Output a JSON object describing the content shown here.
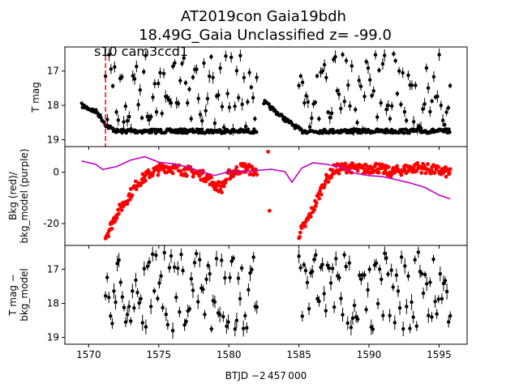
{
  "figure": {
    "title_line1": "AT2019con  Gaia19bdh",
    "title_line2": "18.49G_Gaia Unclassified z= -99.0",
    "annotation": "s10 cam3ccd1",
    "xlabel": "BTJD −2 457 000"
  },
  "colors": {
    "lightcurve": "#000000",
    "background": "#ff0000",
    "bkg_model": "#bf00bf",
    "marker_line": "#ff0000"
  },
  "chart_data": [
    {
      "type": "scatter",
      "panel": "top",
      "ylabel": "T mag",
      "y_inverted": true,
      "xlim": [
        1568.3,
        1597.0
      ],
      "ylim": [
        19.2,
        16.3
      ],
      "xticks": [
        1570,
        1575,
        1580,
        1585,
        1590,
        1595
      ],
      "yticks": [
        17,
        18,
        19
      ],
      "vline_x": 1571.2,
      "segments": [
        [
          1569.5,
          1582.0
        ],
        [
          1582.5,
          1595.8
        ]
      ],
      "baseline": [
        [
          1569.5,
          18.0
        ],
        [
          1570.6,
          18.2
        ],
        [
          1571.3,
          18.6
        ],
        [
          1572.0,
          18.75
        ],
        [
          1582.0,
          18.75
        ],
        [
          1582.5,
          17.9
        ],
        [
          1584.0,
          18.4
        ],
        [
          1585.2,
          18.75
        ],
        [
          1595.8,
          18.75
        ]
      ],
      "scatter_top": 16.5
    },
    {
      "type": "scatter",
      "panel": "middle",
      "ylabel": "Bkg (red)/ bkg_model (purple)",
      "xlim": [
        1568.3,
        1597.0
      ],
      "ylim": [
        -28.5,
        10.0
      ],
      "yticks": [
        -20,
        0
      ],
      "series": [
        {
          "name": "Bkg",
          "points": [
            [
              1571.2,
              -25
            ],
            [
              1571.5,
              -22
            ],
            [
              1572.0,
              -16
            ],
            [
              1572.8,
              -10
            ],
            [
              1573.5,
              -4
            ],
            [
              1574.5,
              0
            ],
            [
              1575.5,
              2
            ],
            [
              1576.5,
              1
            ],
            [
              1577.5,
              0
            ],
            [
              1578.5,
              -2
            ],
            [
              1579.0,
              -5
            ],
            [
              1579.5,
              -6
            ],
            [
              1580.0,
              -1
            ],
            [
              1581.0,
              2
            ],
            [
              1582.0,
              0
            ],
            [
              1582.8,
              8
            ],
            [
              1582.9,
              -15
            ],
            [
              1585.0,
              -24
            ],
            [
              1585.5,
              -20
            ],
            [
              1586.2,
              -12
            ],
            [
              1586.8,
              -4
            ],
            [
              1587.5,
              1
            ],
            [
              1588.5,
              2
            ],
            [
              1589.5,
              1
            ],
            [
              1590.5,
              2
            ],
            [
              1591.5,
              0
            ],
            [
              1592.5,
              1
            ],
            [
              1593.5,
              2
            ],
            [
              1594.5,
              1
            ],
            [
              1595.5,
              0
            ]
          ]
        },
        {
          "name": "bkg_model",
          "points": [
            [
              1569.5,
              4
            ],
            [
              1570.5,
              3
            ],
            [
              1571.0,
              1
            ],
            [
              1572.0,
              2
            ],
            [
              1573.0,
              5
            ],
            [
              1574.0,
              6
            ],
            [
              1575.0,
              4
            ],
            [
              1576.0,
              3
            ],
            [
              1577.0,
              2
            ],
            [
              1578.0,
              0
            ],
            [
              1579.0,
              -1
            ],
            [
              1580.0,
              0
            ],
            [
              1581.0,
              0
            ],
            [
              1582.0,
              1
            ],
            [
              1583.0,
              1
            ],
            [
              1584.0,
              0
            ],
            [
              1584.5,
              -4
            ],
            [
              1585.2,
              2
            ],
            [
              1586.0,
              4
            ],
            [
              1587.0,
              3
            ],
            [
              1588.0,
              2
            ],
            [
              1589.0,
              0
            ],
            [
              1590.0,
              -1
            ],
            [
              1591.0,
              -2
            ],
            [
              1592.0,
              -3
            ],
            [
              1593.0,
              -4
            ],
            [
              1594.0,
              -6
            ],
            [
              1595.0,
              -9
            ],
            [
              1595.8,
              -10
            ]
          ]
        }
      ]
    },
    {
      "type": "scatter",
      "panel": "bottom",
      "ylabel": "T mag − bkg_model",
      "y_inverted": true,
      "xlim": [
        1568.3,
        1597.0
      ],
      "ylim": [
        19.2,
        16.3
      ],
      "yticks": [
        17,
        18,
        19
      ],
      "segments": [
        [
          1571.2,
          1582.0
        ],
        [
          1585.0,
          1595.8
        ]
      ],
      "range": [
        16.5,
        18.8
      ]
    }
  ]
}
